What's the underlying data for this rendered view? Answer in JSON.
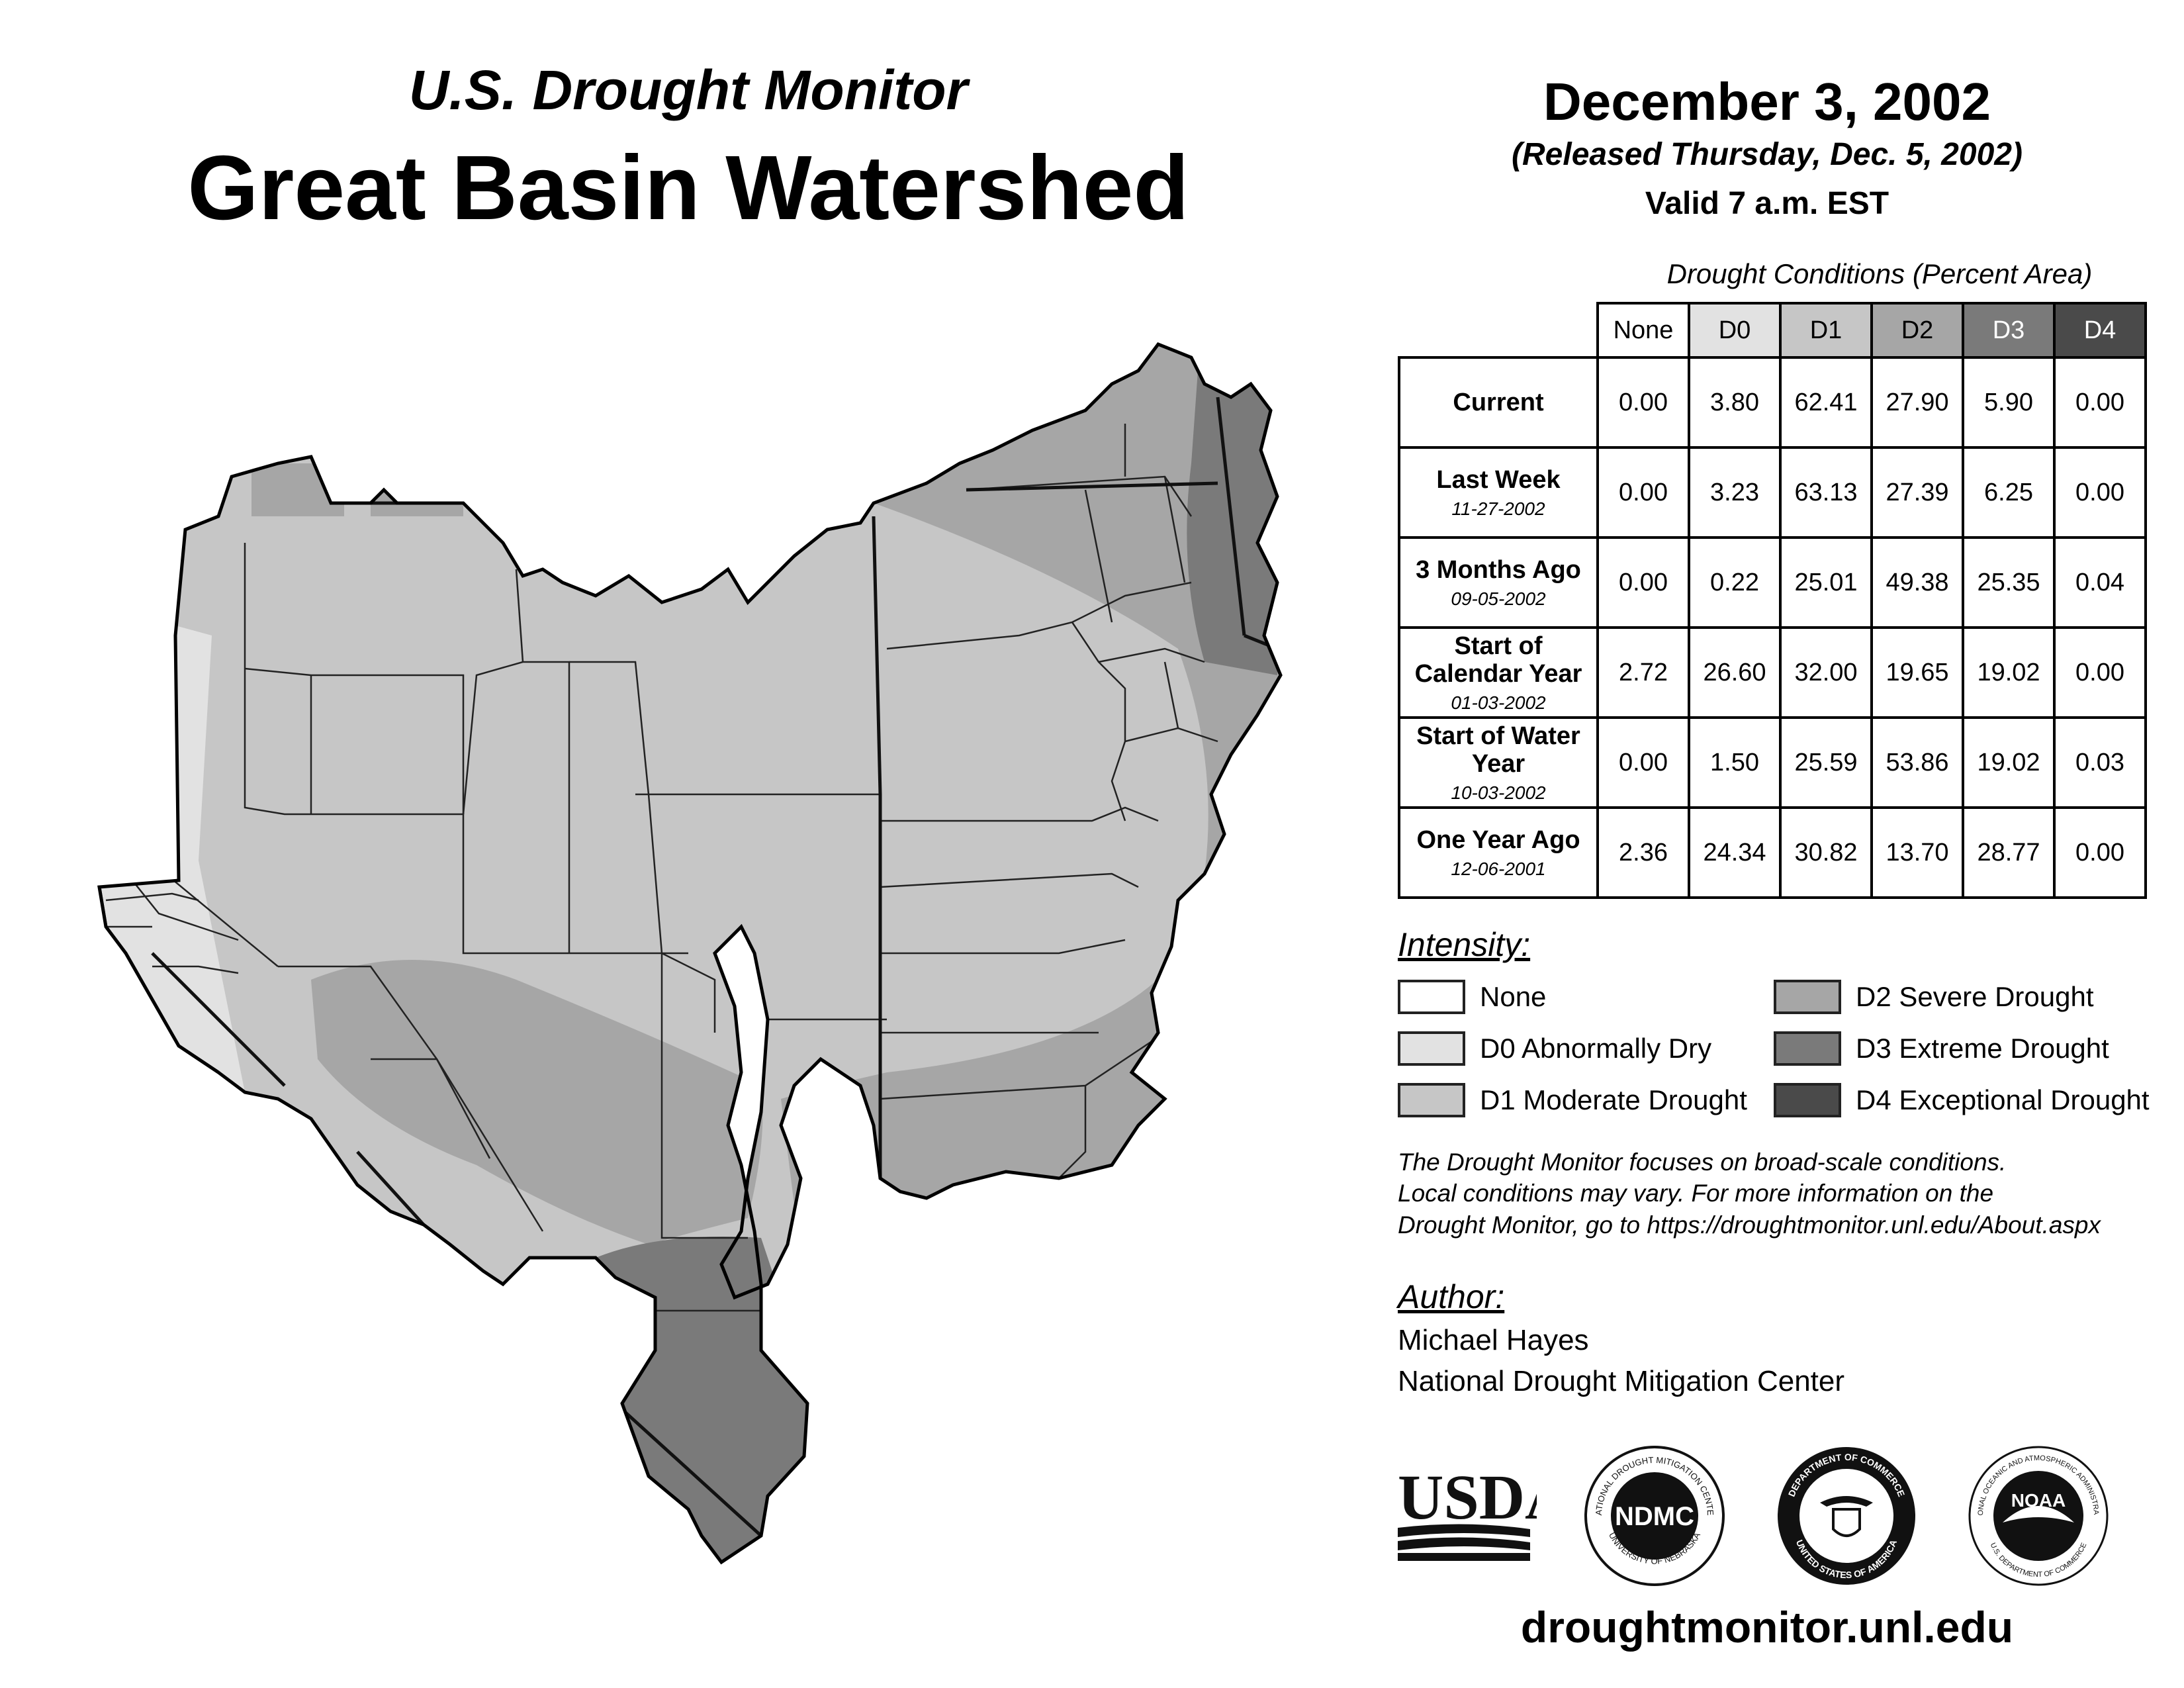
{
  "header": {
    "subtitle": "U.S. Drought Monitor",
    "title": "Great Basin Watershed",
    "date": "December 3, 2002",
    "released": "(Released Thursday, Dec. 5, 2002)",
    "valid": "Valid 7 a.m. EST"
  },
  "table": {
    "caption": "Drought Conditions (Percent Area)",
    "columns": [
      "None",
      "D0",
      "D1",
      "D2",
      "D3",
      "D4"
    ],
    "rows": [
      {
        "label": "Current",
        "date": "",
        "values": [
          "0.00",
          "3.80",
          "62.41",
          "27.90",
          "5.90",
          "0.00"
        ]
      },
      {
        "label": "Last Week",
        "date": "11-27-2002",
        "values": [
          "0.00",
          "3.23",
          "63.13",
          "27.39",
          "6.25",
          "0.00"
        ]
      },
      {
        "label": "3 Months Ago",
        "date": "09-05-2002",
        "values": [
          "0.00",
          "0.22",
          "25.01",
          "49.38",
          "25.35",
          "0.04"
        ]
      },
      {
        "label": "Start of Calendar Year",
        "date": "01-03-2002",
        "values": [
          "2.72",
          "26.60",
          "32.00",
          "19.65",
          "19.02",
          "0.00"
        ]
      },
      {
        "label": "Start of Water Year",
        "date": "10-03-2002",
        "values": [
          "0.00",
          "1.50",
          "25.59",
          "53.86",
          "19.02",
          "0.03"
        ]
      },
      {
        "label": "One Year Ago",
        "date": "12-06-2001",
        "values": [
          "2.36",
          "24.34",
          "30.82",
          "13.70",
          "28.77",
          "0.00"
        ]
      }
    ]
  },
  "legend": {
    "heading": "Intensity:",
    "items": [
      {
        "label": "None",
        "color": "#ffffff"
      },
      {
        "label": "D0 Abnormally Dry",
        "color": "#e2e2e2"
      },
      {
        "label": "D1 Moderate Drought",
        "color": "#c6c6c6"
      },
      {
        "label": "D2 Severe Drought",
        "color": "#a6a6a6"
      },
      {
        "label": "D3 Extreme Drought",
        "color": "#7a7a7a"
      },
      {
        "label": "D4 Exceptional Drought",
        "color": "#4a4a4a"
      }
    ]
  },
  "note": {
    "line1": "The Drought Monitor focuses on broad-scale conditions.",
    "line2": "Local conditions may vary. For more information on the",
    "line3": "Drought Monitor, go to https://droughtmonitor.unl.edu/About.aspx"
  },
  "author": {
    "heading": "Author:",
    "name": "Michael Hayes",
    "org": "National Drought Mitigation Center"
  },
  "logos": {
    "usda": "USDA",
    "ndmc": "NDMC",
    "ndmc_ring_top": "NATIONAL DROUGHT MITIGATION CENTER",
    "ndmc_ring_bottom": "UNIVERSITY OF NEBRASKA",
    "doc_ring_top": "DEPARTMENT OF COMMERCE",
    "doc_ring_bottom": "UNITED STATES OF AMERICA",
    "noaa": "NOAA",
    "noaa_ring_top": "NATIONAL OCEANIC AND ATMOSPHERIC ADMINISTRATION",
    "noaa_ring_bottom": "U.S. DEPARTMENT OF COMMERCE"
  },
  "footer": {
    "site": "droughtmonitor.unl.edu"
  }
}
